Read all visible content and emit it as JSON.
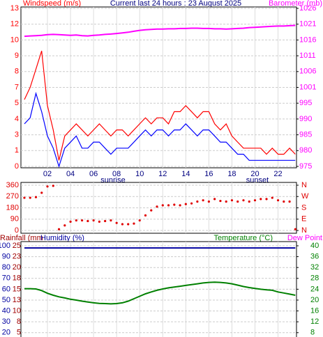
{
  "chart_data": [
    {
      "type": "line",
      "title": "Current last 24 hours : 23 August 2025",
      "y_label": "Windspeed (m/s)",
      "y2_label": "Barometer (mb)",
      "annotations": [
        "sunrise",
        "sunset"
      ],
      "x": [
        0,
        0.5,
        1,
        1.5,
        2,
        2.5,
        3,
        3.5,
        4,
        4.5,
        5,
        5.5,
        6,
        6.5,
        7,
        7.5,
        8,
        8.5,
        9,
        9.5,
        10,
        10.5,
        11,
        11.5,
        12,
        12.5,
        13,
        13.5,
        14,
        14.5,
        15,
        15.5,
        16,
        16.5,
        17,
        17.5,
        18,
        18.5,
        19,
        19.5,
        20,
        20.5,
        21,
        21.5,
        22,
        22.5,
        23,
        23.5
      ],
      "xlim": [
        -0.3,
        23.6
      ],
      "xticks": [
        {
          "value": 2,
          "label": "02"
        },
        {
          "value": 4,
          "label": "04"
        },
        {
          "value": 6,
          "label": "06"
        },
        {
          "value": 8,
          "label": "08"
        },
        10,
        12,
        14,
        16,
        18,
        20,
        22
      ],
      "ylim": [
        0,
        13
      ],
      "yticks": [
        0,
        {
          "value": 1.3,
          "label": "1"
        },
        {
          "value": 2.6,
          "label": "3"
        },
        {
          "value": 3.9,
          "label": "4"
        },
        {
          "value": 5.2,
          "label": "5"
        },
        {
          "value": 6.5,
          "label": "7"
        },
        {
          "value": 7.8,
          "label": "8"
        },
        {
          "value": 9.1,
          "label": "9"
        },
        {
          "value": 10.4,
          "label": "10"
        },
        {
          "value": 11.7,
          "label": "12"
        },
        13
      ],
      "y2lim": [
        975,
        1026
      ],
      "y2ticks": [
        975,
        {
          "value": 980.1,
          "label": "980"
        },
        {
          "value": 985.2,
          "label": "985"
        },
        {
          "value": 990.3,
          "label": "990"
        },
        {
          "value": 995.4,
          "label": "995"
        },
        {
          "value": 1000.5,
          "label": "1001"
        },
        {
          "value": 1005.6,
          "label": "1006"
        },
        {
          "value": 1010.7,
          "label": "1011"
        },
        {
          "value": 1015.8,
          "label": "1016"
        },
        {
          "value": 1020.9,
          "label": "1021"
        },
        1026
      ],
      "grid": true,
      "series": [
        {
          "color": "#ff0000",
          "values": [
            5.5,
            6.5,
            8,
            9.5,
            5,
            3,
            0.5,
            2.5,
            3,
            3.5,
            3,
            2.5,
            3,
            3.5,
            3,
            2.5,
            3,
            3,
            2.5,
            3,
            3.5,
            4,
            3.5,
            4,
            4,
            3.5,
            4.5,
            4.5,
            5,
            4.5,
            4,
            4.5,
            4.5,
            3.5,
            3,
            3.5,
            2.5,
            2,
            1.5,
            1.5,
            1.5,
            1.5,
            1,
            1.5,
            1,
            1,
            1.5,
            1
          ]
        },
        {
          "color": "#0000ff",
          "values": [
            3.5,
            4,
            6,
            4.5,
            2.5,
            1.5,
            0,
            1.5,
            2,
            2.5,
            1.5,
            1.5,
            2,
            2,
            1.5,
            1,
            1.5,
            1.5,
            1.5,
            2,
            2.5,
            3,
            2.5,
            3,
            3,
            2.5,
            3,
            3,
            3.5,
            3,
            2.5,
            3,
            3,
            2.5,
            2,
            2,
            1.5,
            1,
            1,
            0.5,
            0.5,
            0.5,
            0.5,
            0.5,
            0.5,
            0.5,
            0.5,
            0.5
          ]
        },
        {
          "color": "#ff00ff",
          "axis": "y2",
          "values": [
            1017.0,
            1017.1,
            1017.2,
            1017.3,
            1017.5,
            1017.6,
            1017.5,
            1017.4,
            1017.3,
            1017.4,
            1017.2,
            1017.1,
            1017.3,
            1017.4,
            1017.6,
            1017.7,
            1017.9,
            1018.1,
            1018.3,
            1018.6,
            1018.9,
            1019.1,
            1019.2,
            1019.3,
            1019.3,
            1019.4,
            1019.4,
            1019.5,
            1019.5,
            1019.6,
            1019.6,
            1019.5,
            1019.5,
            1019.4,
            1019.4,
            1019.3,
            1019.4,
            1019.5,
            1019.6,
            1019.8,
            1019.9,
            1020.0,
            1020.1,
            1020.2,
            1020.3,
            1020.3,
            1020.4,
            1020.5
          ]
        }
      ]
    },
    {
      "type": "scatter",
      "x": [
        0,
        0.5,
        1,
        1.5,
        2,
        2.5,
        3,
        3.5,
        4,
        4.5,
        5,
        5.5,
        6,
        6.5,
        7,
        7.5,
        8,
        8.5,
        9,
        9.5,
        10,
        10.5,
        11,
        11.5,
        12,
        12.5,
        13,
        13.5,
        14,
        14.5,
        15,
        15.5,
        16,
        16.5,
        17,
        17.5,
        18,
        18.5,
        19,
        19.5,
        20,
        20.5,
        21,
        21.5,
        22,
        22.5,
        23,
        23.5
      ],
      "xlim": [
        -0.3,
        23.6
      ],
      "xticks": [
        {
          "value": 2,
          "label": "02"
        },
        {
          "value": 4,
          "label": "04"
        },
        {
          "value": 6,
          "label": "06"
        },
        {
          "value": 8,
          "label": "08"
        },
        10,
        12,
        14,
        16,
        18,
        20,
        22
      ],
      "ylim": [
        0,
        360
      ],
      "yticks": [
        0,
        90,
        180,
        270,
        360
      ],
      "y2lim": [
        0,
        360
      ],
      "y2ticks": [
        {
          "value": 0,
          "label": "N"
        },
        {
          "value": 90,
          "label": "E"
        },
        {
          "value": 180,
          "label": "S"
        },
        {
          "value": 270,
          "label": "W"
        },
        {
          "value": 360,
          "label": "N"
        }
      ],
      "grid": true,
      "series": [
        {
          "color": "#e00000",
          "values": [
            260,
            260,
            265,
            300,
            350,
            355,
            10,
            40,
            70,
            80,
            80,
            75,
            80,
            70,
            75,
            80,
            60,
            50,
            50,
            55,
            80,
            120,
            160,
            190,
            200,
            200,
            205,
            200,
            210,
            215,
            230,
            240,
            230,
            250,
            235,
            230,
            240,
            230,
            240,
            230,
            240,
            250,
            250,
            260,
            240,
            230,
            230,
            10
          ]
        }
      ]
    },
    {
      "type": "line",
      "labels": {
        "rainfall": "Rainfall (mm",
        "humidity": "Humidity (%)",
        "temperature": "Temperature (°C)",
        "dew_point": "Dew Point"
      },
      "x": [
        0,
        0.5,
        1,
        1.5,
        2,
        2.5,
        3,
        3.5,
        4,
        4.5,
        5,
        5.5,
        6,
        6.5,
        7,
        7.5,
        8,
        8.5,
        9,
        9.5,
        10,
        10.5,
        11,
        11.5,
        12,
        12.5,
        13,
        13.5,
        14,
        14.5,
        15,
        15.5,
        16,
        16.5,
        17,
        17.5,
        18,
        18.5,
        19,
        19.5,
        20,
        20.5,
        21,
        21.5,
        22,
        22.5,
        23,
        23.5
      ],
      "xlim": [
        -0.3,
        23.6
      ],
      "xticks": [
        {
          "value": 2,
          "label": "02"
        },
        {
          "value": 4,
          "label": "04"
        },
        {
          "value": 6,
          "label": "06"
        },
        {
          "value": 8,
          "label": "08"
        },
        10,
        12,
        14,
        16,
        18,
        20,
        22
      ],
      "ylim": [
        16,
        100
      ],
      "yticks": [
        20,
        30,
        40,
        50,
        60,
        70,
        80,
        90,
        100
      ],
      "rain_lim": [
        4,
        25
      ],
      "rain_ticks": [
        5,
        {
          "value": 7.5,
          "label": "8"
        },
        10,
        {
          "value": 12.5,
          "label": "13"
        },
        15,
        {
          "value": 17.5,
          "label": "18"
        },
        20,
        {
          "value": 22.5,
          "label": "23"
        },
        25
      ],
      "y2lim": [
        6.4,
        40
      ],
      "y2ticks": [
        8,
        12,
        16,
        20,
        24,
        28,
        32,
        36,
        40
      ],
      "grid": true,
      "series": [
        {
          "color": "#0000a0",
          "values": [
            98,
            98,
            98,
            98,
            98,
            98,
            98,
            98,
            98,
            98,
            98,
            98,
            98,
            98,
            98,
            98,
            98,
            98,
            98,
            98,
            98,
            98,
            98,
            98,
            98,
            98,
            98,
            98,
            98,
            98,
            98,
            98,
            98,
            98,
            98,
            98,
            98,
            98,
            98,
            98,
            98,
            98,
            98,
            98,
            98,
            98,
            98,
            98
          ]
        },
        {
          "color": "#008000",
          "axis": "y2",
          "values": [
            24.2,
            24.2,
            24.1,
            23.5,
            22.5,
            21.8,
            21.2,
            20.8,
            20.3,
            20.0,
            19.6,
            19.3,
            19.0,
            18.8,
            18.7,
            18.6,
            18.7,
            19.0,
            19.6,
            20.5,
            21.4,
            22.3,
            23.0,
            23.6,
            24.1,
            24.5,
            24.8,
            25.1,
            25.4,
            25.7,
            26.0,
            26.3,
            26.5,
            26.6,
            26.5,
            26.3,
            26.0,
            25.5,
            25.0,
            24.6,
            24.3,
            24.0,
            23.8,
            23.6,
            23.0,
            22.6,
            22.2,
            21.8
          ]
        }
      ]
    }
  ]
}
